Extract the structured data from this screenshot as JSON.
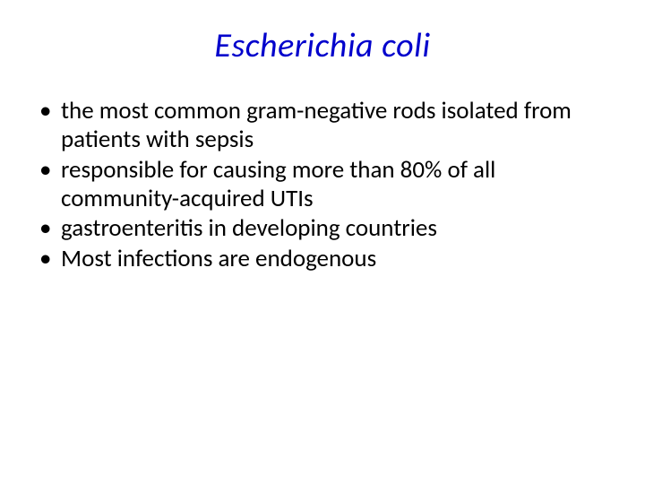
{
  "slide": {
    "title": "Escherichia coli",
    "title_color": "#0000cc",
    "title_fontsize": 38,
    "title_italic": true,
    "body_fontsize": 27,
    "body_color": "#000000",
    "background_color": "#ffffff",
    "bullets": [
      "the most common gram-negative rods isolated from patients with sepsis",
      "responsible for causing more than 80% of all community-acquired UTIs",
      "gastroenteritis in developing countries",
      "Most infections are endogenous"
    ]
  }
}
